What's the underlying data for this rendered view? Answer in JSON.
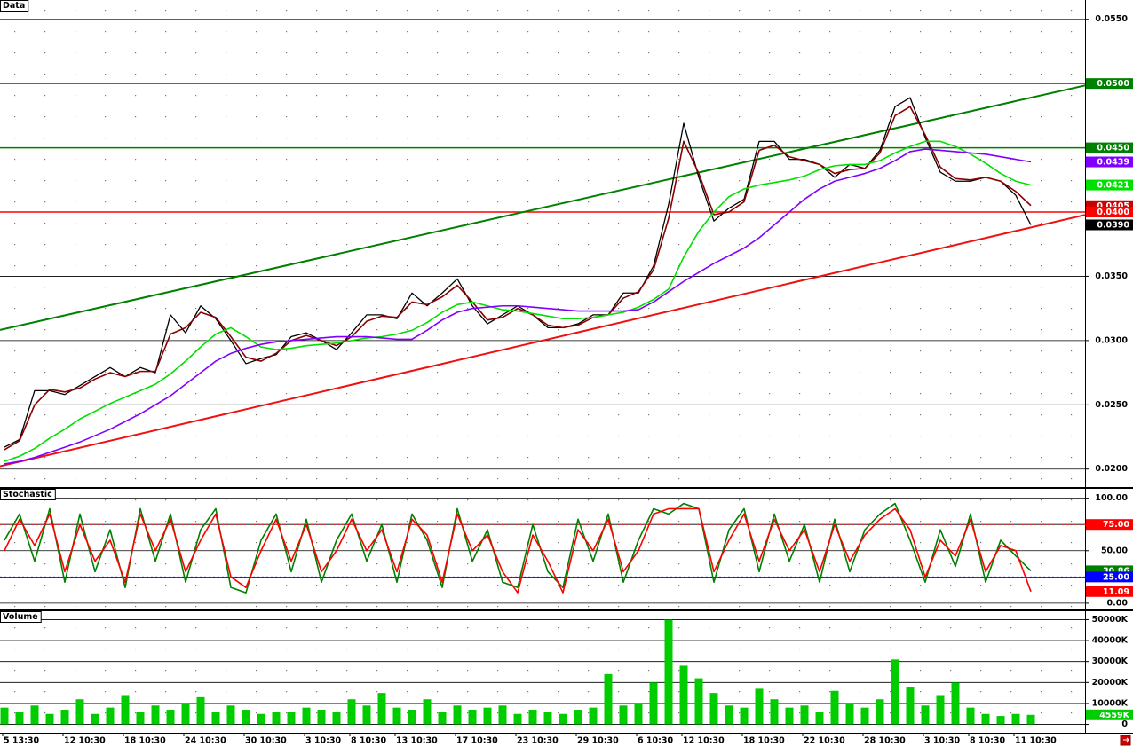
{
  "chart_data": [
    {
      "type": "line",
      "title": "Data",
      "categories": [
        "5 13:30",
        null,
        null,
        null,
        "12 10:30",
        null,
        null,
        null,
        "18 10:30",
        null,
        null,
        null,
        "24 10:30",
        null,
        null,
        null,
        "30 10:30",
        null,
        null,
        null,
        "3 10:30",
        null,
        null,
        "8 10:30",
        null,
        null,
        "13 10:30",
        null,
        null,
        null,
        "17 10:30",
        null,
        null,
        null,
        "23 10:30",
        null,
        null,
        null,
        "29 10:30",
        null,
        null,
        null,
        "6 10:30",
        null,
        null,
        "12 10:30",
        null,
        null,
        null,
        "18 10:30",
        null,
        null,
        null,
        "22 10:30",
        null,
        null,
        null,
        "28 10:30",
        null,
        null,
        null,
        "3 10:30",
        null,
        null,
        "8 10:30",
        null,
        null,
        "11 10:30",
        null
      ],
      "series": [
        {
          "color": "#000000",
          "values": [
            0.0217,
            0.0223,
            0.0261,
            0.0261,
            0.0258,
            0.0265,
            0.0272,
            0.0279,
            0.0272,
            0.0279,
            0.0275,
            0.032,
            0.0306,
            0.0327,
            0.0317,
            0.03,
            0.0282,
            0.0286,
            0.0289,
            0.0303,
            0.0306,
            0.03,
            0.0293,
            0.0306,
            0.032,
            0.032,
            0.0317,
            0.0337,
            0.0327,
            0.0337,
            0.0348,
            0.0327,
            0.0313,
            0.032,
            0.0327,
            0.032,
            0.031,
            0.031,
            0.0313,
            0.032,
            0.032,
            0.0337,
            0.0337,
            0.0358,
            0.0406,
            0.0469,
            0.0427,
            0.0393,
            0.0403,
            0.041,
            0.0455,
            0.0455,
            0.0441,
            0.0441,
            0.0437,
            0.0427,
            0.0437,
            0.0434,
            0.0448,
            0.0482,
            0.0489,
            0.0458,
            0.0431,
            0.0424,
            0.0424,
            0.0427,
            0.0424,
            0.0413,
            0.039
          ]
        },
        {
          "color": "#8b0000",
          "values": [
            0.0215,
            0.0222,
            0.025,
            0.0262,
            0.026,
            0.0263,
            0.027,
            0.0275,
            0.0272,
            0.0276,
            0.0276,
            0.0305,
            0.031,
            0.0322,
            0.0318,
            0.0303,
            0.0287,
            0.0284,
            0.029,
            0.03,
            0.0304,
            0.03,
            0.0296,
            0.0303,
            0.0315,
            0.0319,
            0.0318,
            0.033,
            0.0328,
            0.0334,
            0.0343,
            0.033,
            0.0316,
            0.0318,
            0.0325,
            0.032,
            0.0312,
            0.031,
            0.0312,
            0.0318,
            0.032,
            0.0333,
            0.0338,
            0.0355,
            0.0395,
            0.0455,
            0.043,
            0.0398,
            0.04,
            0.0408,
            0.0448,
            0.0452,
            0.0443,
            0.044,
            0.0437,
            0.043,
            0.0433,
            0.0434,
            0.0446,
            0.0475,
            0.0482,
            0.046,
            0.0435,
            0.0426,
            0.0425,
            0.0427,
            0.0424,
            0.0416,
            0.0405
          ]
        },
        {
          "color": "#00e000",
          "values": [
            0.0206,
            0.021,
            0.0216,
            0.0224,
            0.0231,
            0.0239,
            0.0245,
            0.0251,
            0.0256,
            0.0261,
            0.0266,
            0.0274,
            0.0284,
            0.0295,
            0.0305,
            0.031,
            0.0303,
            0.0295,
            0.0293,
            0.0294,
            0.0296,
            0.0297,
            0.0298,
            0.03,
            0.0302,
            0.0303,
            0.0305,
            0.0308,
            0.0314,
            0.0322,
            0.0328,
            0.033,
            0.0327,
            0.0324,
            0.0323,
            0.0321,
            0.0319,
            0.0317,
            0.0317,
            0.0318,
            0.032,
            0.0322,
            0.0326,
            0.0332,
            0.034,
            0.0365,
            0.0385,
            0.04,
            0.0412,
            0.0418,
            0.0421,
            0.0423,
            0.0425,
            0.0428,
            0.0433,
            0.0436,
            0.0437,
            0.0437,
            0.044,
            0.0446,
            0.0451,
            0.0455,
            0.0455,
            0.0451,
            0.0445,
            0.0438,
            0.043,
            0.0424,
            0.0421
          ]
        },
        {
          "color": "#8000ff",
          "values": [
            0.0204,
            0.0206,
            0.0209,
            0.0213,
            0.0217,
            0.0221,
            0.0226,
            0.0231,
            0.0237,
            0.0243,
            0.025,
            0.0257,
            0.0266,
            0.0275,
            0.0284,
            0.029,
            0.0294,
            0.0297,
            0.0299,
            0.03,
            0.0301,
            0.0302,
            0.0303,
            0.0303,
            0.0303,
            0.0302,
            0.0301,
            0.0301,
            0.0308,
            0.0316,
            0.0322,
            0.0325,
            0.0326,
            0.0327,
            0.0327,
            0.0326,
            0.0325,
            0.0324,
            0.0323,
            0.0323,
            0.0323,
            0.0323,
            0.0324,
            0.033,
            0.0338,
            0.0346,
            0.0353,
            0.036,
            0.0366,
            0.0372,
            0.038,
            0.039,
            0.04,
            0.041,
            0.0418,
            0.0424,
            0.0427,
            0.043,
            0.0434,
            0.044,
            0.0447,
            0.0449,
            0.0448,
            0.0447,
            0.0446,
            0.0445,
            0.0443,
            0.0441,
            0.0439
          ]
        }
      ],
      "ylim": [
        0.0186,
        0.0565
      ],
      "yticks": [
        {
          "value": 0.02,
          "label": "0.0200"
        },
        {
          "value": 0.025,
          "label": "0.0250"
        },
        {
          "value": 0.03,
          "label": "0.0300"
        },
        {
          "value": 0.035,
          "label": "0.0350"
        },
        {
          "value": 0.04,
          "label": "0.0400"
        },
        {
          "value": 0.045,
          "label": "0.0450"
        },
        {
          "value": 0.05,
          "label": "0.0500"
        },
        {
          "value": 0.055,
          "label": "0.0550"
        }
      ],
      "grid": true,
      "levels": [
        {
          "value": 0.05,
          "color": "#008000"
        },
        {
          "value": 0.045,
          "color": "#008000"
        },
        {
          "value": 0.04,
          "color": "#ff0000"
        }
      ],
      "trendlines": [
        {
          "color": "#008000",
          "values": [
            0.0309,
            0.0489
          ]
        },
        {
          "color": "#ee1111",
          "values": [
            0.0203,
            0.0388
          ]
        }
      ],
      "markers": [
        {
          "value": 0.05,
          "label": "0.0500",
          "color": "#008000"
        },
        {
          "value": 0.045,
          "label": "0.0450",
          "color": "#008000"
        },
        {
          "value": 0.0439,
          "label": "0.0439",
          "color": "#8000ff"
        },
        {
          "value": 0.0421,
          "label": "0.0421",
          "color": "#00e000"
        },
        {
          "value": 0.0405,
          "label": "0.0405",
          "color": "#cc0000"
        },
        {
          "value": 0.04,
          "label": "0.0400",
          "color": "#ff0000"
        },
        {
          "value": 0.039,
          "label": "0.0390",
          "color": "#000000"
        }
      ]
    },
    {
      "type": "line",
      "title": "Stochastic",
      "series": [
        {
          "color": "#008000",
          "values": [
            60,
            85,
            40,
            90,
            20,
            85,
            30,
            70,
            15,
            90,
            40,
            85,
            20,
            70,
            90,
            15,
            10,
            60,
            85,
            30,
            80,
            20,
            60,
            85,
            40,
            75,
            20,
            85,
            60,
            15,
            90,
            40,
            70,
            20,
            15,
            75,
            30,
            15,
            80,
            40,
            85,
            20,
            60,
            90,
            85,
            95,
            90,
            20,
            70,
            90,
            30,
            85,
            40,
            75,
            20,
            80,
            30,
            70,
            85,
            95,
            60,
            20,
            70,
            35,
            85,
            20,
            60,
            45,
            30.86
          ]
        },
        {
          "color": "#ff0000",
          "values": [
            50,
            80,
            55,
            85,
            30,
            75,
            40,
            60,
            20,
            85,
            50,
            80,
            30,
            60,
            85,
            25,
            15,
            50,
            80,
            40,
            75,
            30,
            50,
            80,
            50,
            70,
            30,
            80,
            65,
            20,
            85,
            50,
            65,
            30,
            10,
            65,
            40,
            10,
            70,
            50,
            80,
            30,
            50,
            85,
            90,
            90,
            90,
            30,
            60,
            85,
            40,
            80,
            50,
            70,
            30,
            75,
            40,
            65,
            80,
            90,
            70,
            25,
            60,
            45,
            80,
            30,
            55,
            50,
            11.09
          ]
        }
      ],
      "ylim": [
        -6,
        109
      ],
      "yticks": [
        {
          "value": 0,
          "label": "0.00"
        },
        {
          "value": 25,
          "label": "25.00"
        },
        {
          "value": 50,
          "label": "50.00"
        },
        {
          "value": 75,
          "label": "75.00"
        },
        {
          "value": 100,
          "label": "100.00"
        }
      ],
      "grid": true,
      "levels": [
        {
          "value": 75,
          "color": "#ff0000"
        },
        {
          "value": 25,
          "color": "#0000ff"
        }
      ],
      "markers": [
        {
          "value": 75,
          "label": "75.00",
          "color": "#ff0000"
        },
        {
          "value": 30.86,
          "label": "30.86",
          "color": "#008000"
        },
        {
          "value": 25,
          "label": "25.00",
          "color": "#0000ff"
        },
        {
          "value": 11.09,
          "label": "11.09",
          "color": "#ff0000"
        }
      ]
    },
    {
      "type": "bar",
      "title": "Volume",
      "color": "#00cc00",
      "values": [
        8000,
        6000,
        9000,
        5000,
        7000,
        12000,
        5000,
        8000,
        14000,
        6000,
        9000,
        7000,
        10000,
        13000,
        6000,
        9000,
        7000,
        5000,
        6000,
        6000,
        8000,
        7000,
        6000,
        12000,
        9000,
        15000,
        8000,
        7000,
        12000,
        6000,
        9000,
        7000,
        8000,
        9000,
        5000,
        7000,
        6000,
        5000,
        7000,
        8000,
        24000,
        9000,
        10000,
        20000,
        50000,
        28000,
        22000,
        15000,
        9000,
        8000,
        17000,
        12000,
        8000,
        9000,
        6000,
        16000,
        10000,
        8000,
        12000,
        31000,
        18000,
        9000,
        14000,
        20000,
        8000,
        5000,
        4000,
        5000,
        4559
      ],
      "ylim": [
        -4000,
        54000
      ],
      "yticks": [
        0,
        {
          "value": 10000,
          "label": "10000K"
        },
        {
          "value": 20000,
          "label": "20000K"
        },
        {
          "value": 30000,
          "label": "30000K"
        },
        {
          "value": 40000,
          "label": "40000K"
        },
        {
          "value": 50000,
          "label": "50000K"
        }
      ],
      "grid": true,
      "markers": [
        {
          "value": 4559,
          "label": "4559K",
          "color": "#00cc00"
        }
      ]
    }
  ]
}
